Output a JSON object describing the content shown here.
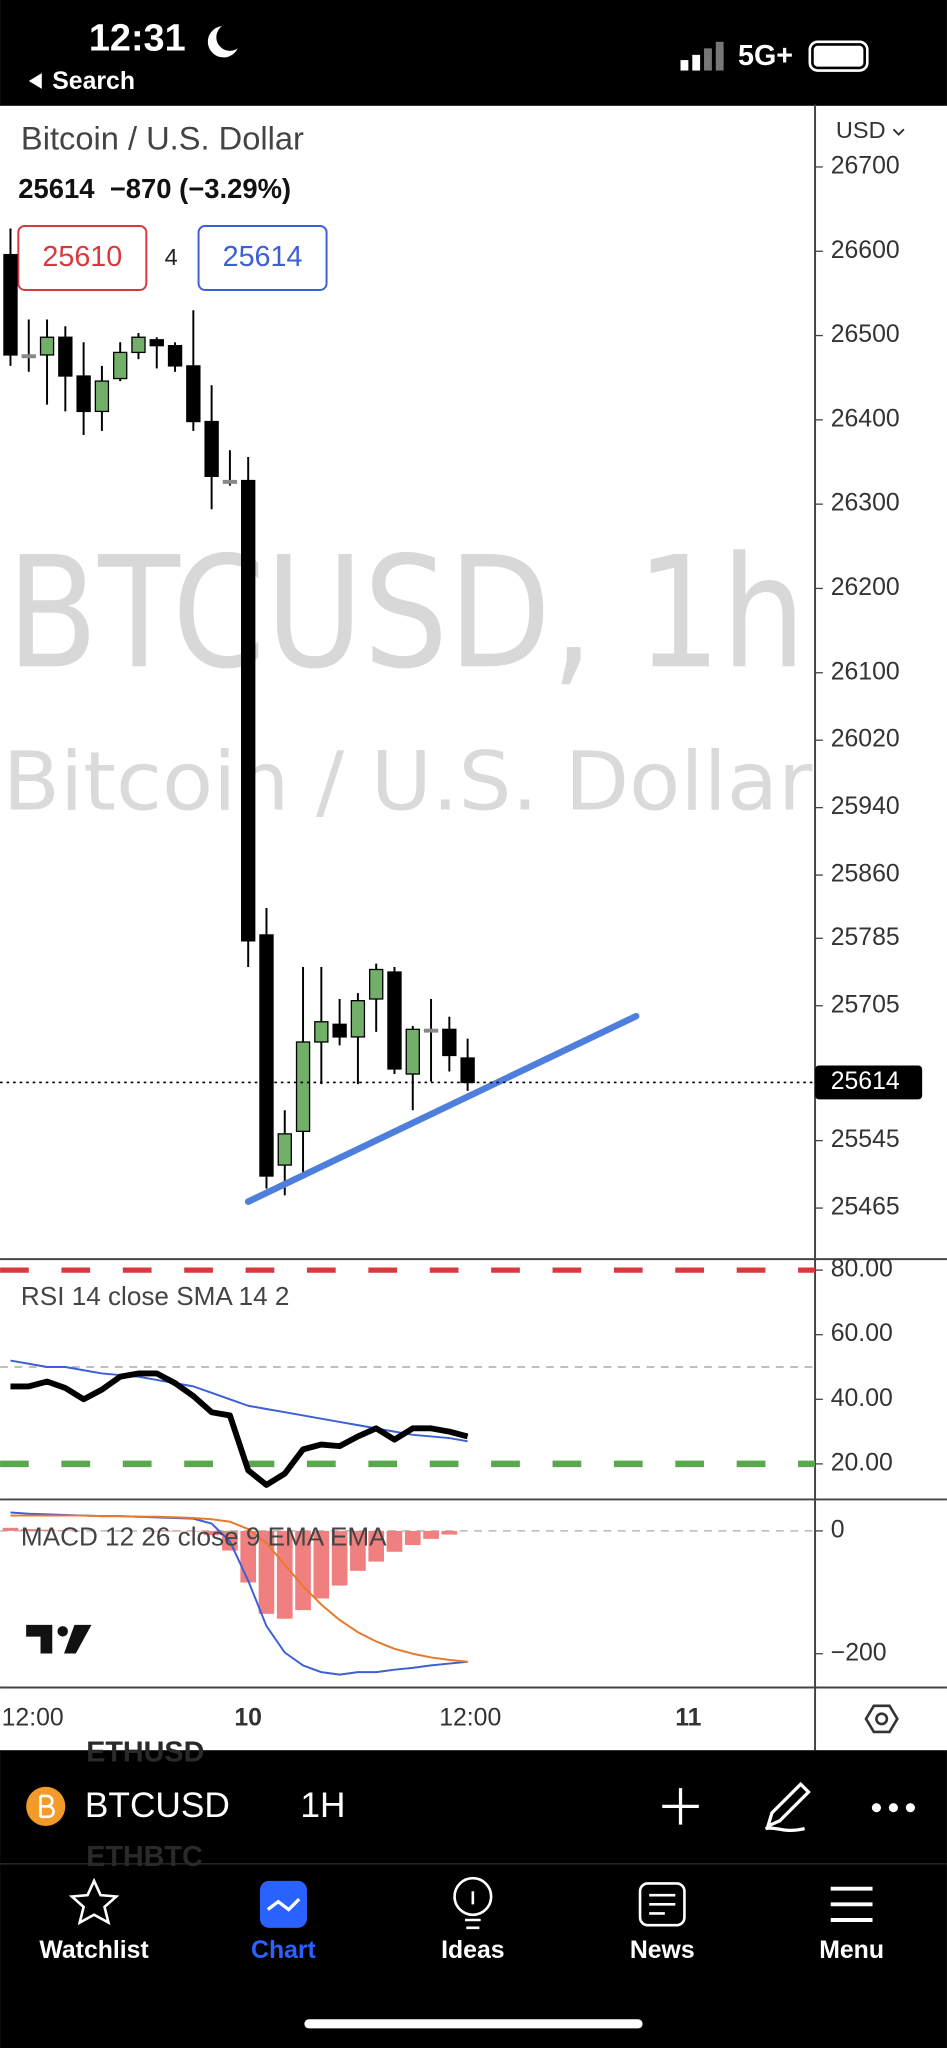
{
  "status_bar": {
    "time": "12:31",
    "back": "Search",
    "network": "5G+"
  },
  "header": {
    "title": "Bitcoin / U.S. Dollar",
    "quote": "25614  −870 (−3.29%)",
    "bid": 25610,
    "spread": 4,
    "ask": 25614,
    "currency": "USD"
  },
  "watermark": {
    "symbol": "BTCUSD, 1h",
    "description": "Bitcoin / U.S. Dollar"
  },
  "chart_data": [
    {
      "type": "candlestick",
      "color_up": "#72b06a",
      "color_down": "#000000",
      "color_doji": "#888888",
      "open": [
        26596,
        26477,
        26477,
        26498,
        26452,
        26410,
        26449,
        26480,
        26495,
        26488,
        26464,
        26398,
        26328,
        26328,
        25789,
        25516,
        25556,
        25662,
        25683,
        25668,
        25713,
        25745,
        25624,
        25677,
        25677,
        25643
      ],
      "high": [
        26627,
        26519,
        26519,
        26511,
        26492,
        26464,
        26492,
        26503,
        26498,
        26492,
        26530,
        26441,
        26364,
        26356,
        25821,
        25581,
        25751,
        25751,
        25713,
        25720,
        25755,
        25751,
        25681,
        25713,
        25692,
        25666
      ],
      "low": [
        26464,
        26457,
        26418,
        26410,
        26382,
        26387,
        26446,
        26472,
        26461,
        26457,
        26387,
        26294,
        26322,
        25751,
        25488,
        25480,
        25503,
        25612,
        25658,
        25612,
        25674,
        25624,
        25581,
        25615,
        25627,
        25604
      ],
      "close": [
        26477,
        26477,
        26498,
        26452,
        26410,
        26446,
        26480,
        26498,
        26488,
        26464,
        26398,
        26333,
        26328,
        25782,
        25503,
        25553,
        25662,
        25686,
        25668,
        25711,
        25748,
        25630,
        25677,
        25677,
        25646,
        25614
      ],
      "ylim": [
        25406,
        26771
      ],
      "yticks": [
        26700,
        26600,
        26500,
        26400,
        26300,
        26200,
        26100,
        26020,
        25940,
        25860,
        25785,
        25705,
        25545,
        25465
      ],
      "last_price": 25614
    },
    {
      "type": "line",
      "title": "RSI 14 close SMA 14 2",
      "series": [
        {
          "name": "RSI",
          "color": "#000000",
          "values": [
            44,
            44,
            45.5,
            43.5,
            40,
            43,
            47,
            48,
            48,
            45,
            41,
            36,
            35,
            18,
            13.5,
            17,
            24.5,
            26,
            25.5,
            28.5,
            31,
            27.5,
            31,
            31,
            30,
            28.5
          ]
        },
        {
          "name": "SMA",
          "color": "#3d5fd6",
          "values": [
            52,
            51,
            50,
            50,
            49,
            48,
            47.5,
            47,
            46,
            45,
            44,
            42,
            40,
            38,
            37,
            36,
            35,
            34,
            33,
            32,
            31,
            30,
            29,
            28.5,
            28,
            27
          ]
        }
      ],
      "levels": {
        "upper": 80,
        "middle": 50,
        "lower": 20,
        "upper_color": "#d9393e",
        "middle_color": "#aaaaaa",
        "lower_color": "#5aa84e"
      },
      "ylim": [
        9,
        83
      ],
      "yticks": [
        {
          "value": 80,
          "label": "80.00"
        },
        {
          "value": 60,
          "label": "60.00"
        },
        {
          "value": 40,
          "label": "40.00"
        },
        {
          "value": 20,
          "label": "20.00"
        }
      ]
    },
    {
      "type": "macd",
      "title": "MACD 12 26 close 9 EMA EMA",
      "series": [
        {
          "name": "MACD",
          "color": "#3d5fd6",
          "values": [
            30,
            28,
            27,
            26,
            25,
            24,
            24,
            23,
            22,
            21,
            20,
            12,
            -17,
            -81,
            -155,
            -198,
            -219,
            -230,
            -234,
            -230,
            -230,
            -226,
            -223,
            -219,
            -216,
            -213
          ]
        },
        {
          "name": "Signal",
          "color": "#e8792b",
          "values": [
            25,
            25,
            25,
            25,
            25,
            24,
            24,
            23,
            23,
            22,
            21,
            19,
            15,
            3,
            -20,
            -55,
            -90,
            -120,
            -145,
            -165,
            -180,
            -192,
            -200,
            -206,
            -210,
            -213
          ]
        }
      ],
      "histogram": [
        5,
        3,
        2,
        1,
        0,
        0,
        0,
        0,
        -1,
        -1,
        -1,
        -7,
        -32,
        -84,
        -135,
        -143,
        -129,
        -110,
        -89,
        -65,
        -50,
        -34,
        -23,
        -13,
        -6,
        0
      ],
      "histogram_color": "#f08080",
      "ylim": [
        -255,
        47
      ],
      "yticks": [
        0,
        {
          "value": -200,
          "label": "−200"
        }
      ]
    }
  ],
  "time_axis": [
    "12:00",
    "10",
    "12:00",
    "11"
  ],
  "toolbar": {
    "symbol": "BTCUSD",
    "interval": "1H"
  },
  "symbol_list": [
    "ETHUSD",
    "ETHBTC"
  ],
  "tabs": [
    "Watchlist",
    "Chart",
    "Ideas",
    "News",
    "Menu"
  ]
}
